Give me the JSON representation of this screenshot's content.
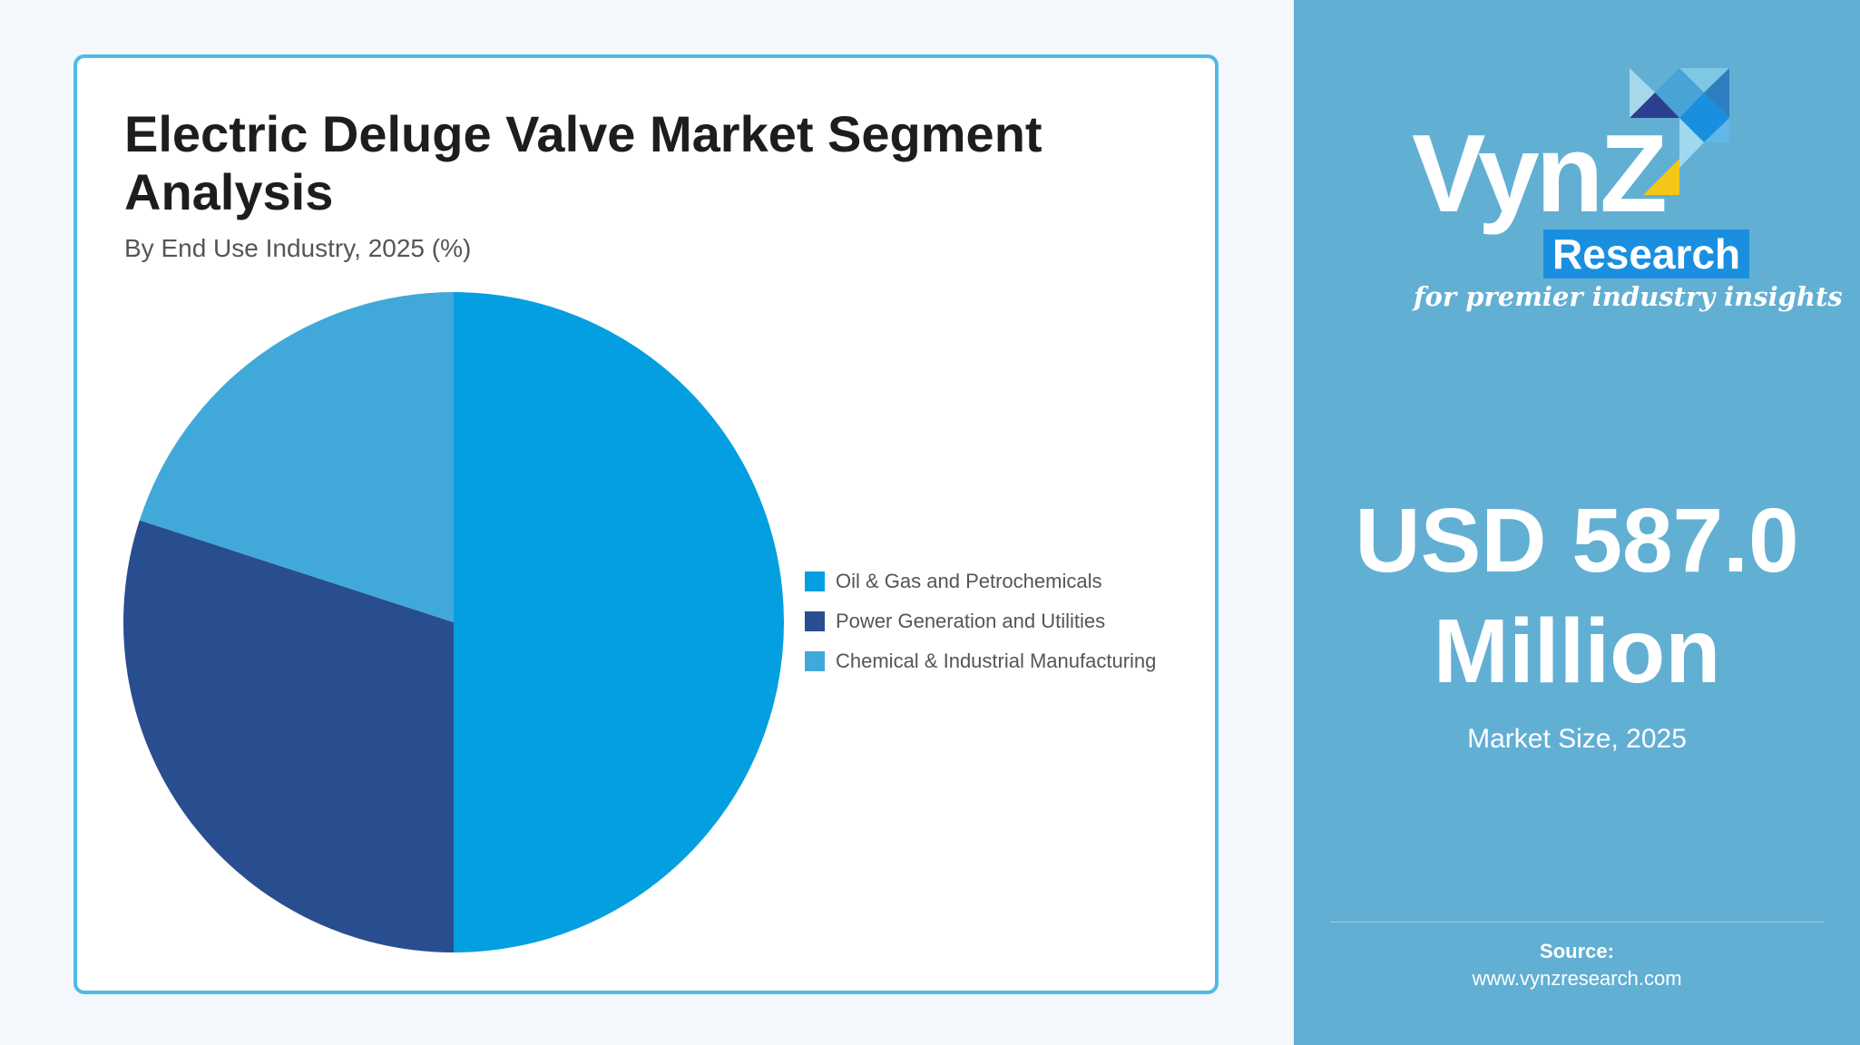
{
  "chart_data": {
    "type": "pie",
    "title": "Electric Deluge Valve Market Segment Analysis",
    "subtitle": "By End Use Industry, 2025 (%)",
    "categories": [
      "Oil & Gas and Petrochemicals",
      "Power Generation and Utilities",
      "Chemical & Industrial Manufacturing"
    ],
    "values": [
      50,
      30,
      20
    ],
    "colors": [
      "#039fe0",
      "#294e8f",
      "#41a9da"
    ],
    "legend_position": "right",
    "start_angle": "top, clockwise"
  },
  "brand": {
    "name": "VynZ",
    "sub": "Research",
    "tagline": "for premier industry insights"
  },
  "summary": {
    "value": "USD 587.0 Million",
    "label": "Market Size, 2025"
  },
  "source": {
    "label": "Source:",
    "url": "www.vynzresearch.com"
  },
  "colors": {
    "page_bg": "#f4f7fb",
    "card_border": "#4dbbe6",
    "side_panel": "#62afd4",
    "title_text": "#1d1d1d"
  }
}
